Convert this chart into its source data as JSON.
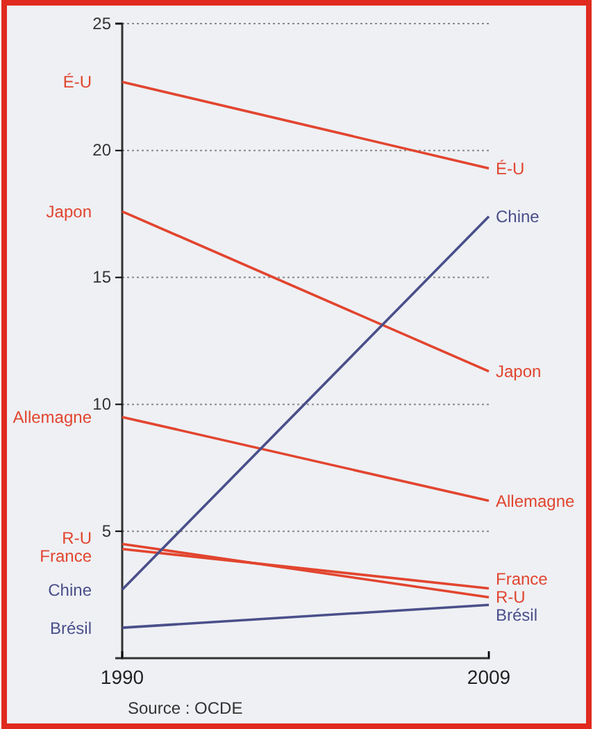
{
  "chart_data": {
    "type": "line",
    "x": [
      1990,
      2009
    ],
    "xlim": [
      1990,
      2009
    ],
    "xticks": [
      1990,
      2009
    ],
    "ylim": [
      0,
      25
    ],
    "yticks": [
      5,
      10,
      15,
      20,
      25
    ],
    "grid": "y",
    "legend": false,
    "marker": "none",
    "line_style": "solid",
    "series": [
      {
        "name": "É-U",
        "color": "#e2452f",
        "values": [
          22.7,
          19.3
        ]
      },
      {
        "name": "Japon",
        "color": "#e2452f",
        "values": [
          17.6,
          11.3
        ]
      },
      {
        "name": "Allemagne",
        "color": "#e2452f",
        "values": [
          9.5,
          6.2
        ]
      },
      {
        "name": "R-U",
        "color": "#e2452f",
        "values": [
          4.5,
          2.4
        ]
      },
      {
        "name": "France",
        "color": "#e2452f",
        "values": [
          4.3,
          2.75
        ]
      },
      {
        "name": "Chine",
        "color": "#4a4f8a",
        "values": [
          2.7,
          17.4
        ]
      },
      {
        "name": "Brésil",
        "color": "#4a4f8a",
        "values": [
          1.2,
          2.1
        ]
      }
    ],
    "annotations": [
      "Source : OCDE"
    ]
  }
}
